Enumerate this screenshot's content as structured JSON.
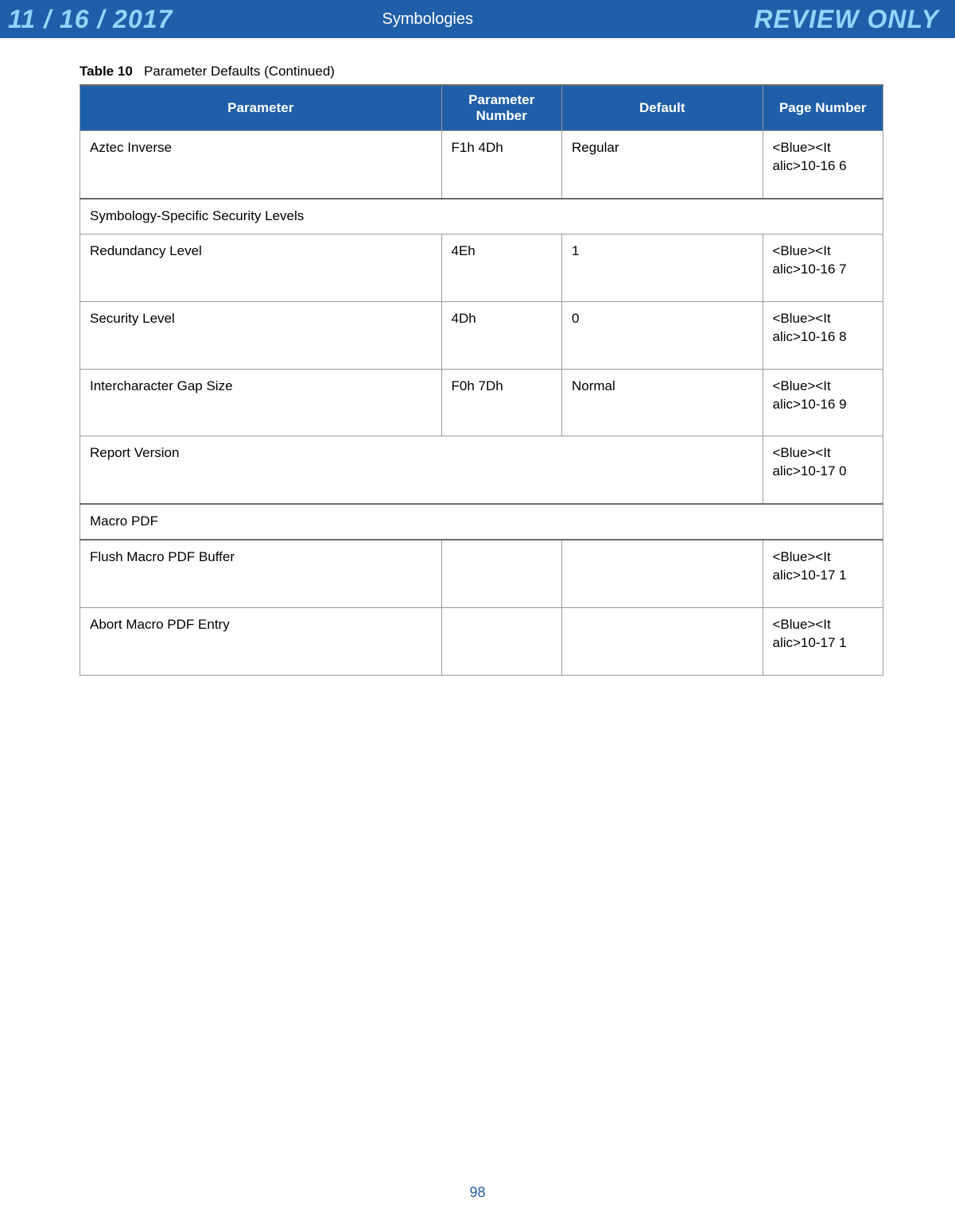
{
  "header": {
    "date": "11 / 16 / 2017",
    "title": "Symbologies",
    "review": "REVIEW ONLY"
  },
  "caption": {
    "label": "Table 10",
    "text": "Parameter Defaults (Continued)"
  },
  "columns": {
    "c1": "Parameter",
    "c2": "Parameter Number",
    "c3": "Default",
    "c4": "Page Number"
  },
  "rows": [
    {
      "type": "data",
      "parameter": "Aztec Inverse",
      "number": "F1h 4Dh",
      "default": "Regular",
      "page": "<Blue><It alic>10-16 6"
    },
    {
      "type": "section",
      "parameter": "Symbology-Specific Security Levels"
    },
    {
      "type": "data",
      "parameter": "Redundancy Level",
      "number": "4Eh",
      "default": "1",
      "page": "<Blue><It alic>10-16 7"
    },
    {
      "type": "data",
      "parameter": "Security Level",
      "number": "4Dh",
      "default": "0",
      "page": "<Blue><It alic>10-16 8"
    },
    {
      "type": "data",
      "parameter": "Intercharacter Gap Size",
      "number": "F0h 7Dh",
      "default": "Normal",
      "page": "<Blue><It alic>10-16 9"
    },
    {
      "type": "span3",
      "parameter": "Report Version",
      "page": "<Blue><It alic>10-17 0"
    },
    {
      "type": "section-solo",
      "parameter": "Macro PDF"
    },
    {
      "type": "data",
      "parameter": "Flush Macro PDF Buffer",
      "number": "",
      "default": "",
      "page": "<Blue><It alic>10-17 1"
    },
    {
      "type": "data",
      "parameter": "Abort Macro PDF Entry",
      "number": "",
      "default": "",
      "page": "<Blue><It alic>10-17 1"
    }
  ],
  "footer": {
    "page_number": "98"
  }
}
